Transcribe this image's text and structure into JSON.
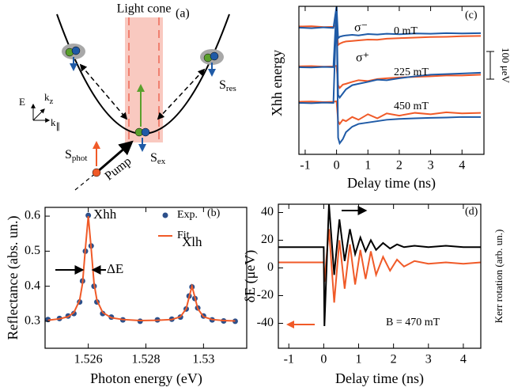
{
  "diagram": {
    "light_cone": "Light cone",
    "panel_label": "(a)",
    "axis_e": "E",
    "axis_kz": {
      "main": "k",
      "sub": "z"
    },
    "axis_kpar": {
      "main": "k",
      "sub": "∥"
    },
    "s_res": {
      "main": "S",
      "sub": "res"
    },
    "s_phot": {
      "main": "S",
      "sub": "phot"
    },
    "s_ex": {
      "main": "S",
      "sub": "ex"
    },
    "pump": "Pump"
  },
  "chart_data": [
    {
      "type": "line",
      "xlabel": "Photon energy (eV)",
      "ylabel": "Reflectance (abs. un.)",
      "annotations": [
        "Xhh",
        "(b)",
        "ΔE",
        "Xlh"
      ],
      "legend": "upper right",
      "xlim": [
        1.5245,
        1.5315
      ],
      "xticks": [
        1.526,
        1.528,
        1.53
      ],
      "ylim": [
        0.223,
        0.625
      ],
      "yticks": [
        0.3,
        0.4,
        0.5,
        0.6
      ],
      "x": [
        1.5246,
        1.525,
        1.5253,
        1.5255,
        1.5257,
        1.5258,
        1.5259,
        1.526,
        1.5261,
        1.5262,
        1.5263,
        1.5265,
        1.5268,
        1.5272,
        1.5278,
        1.5284,
        1.5289,
        1.5292,
        1.5294,
        1.5295,
        1.5296,
        1.5297,
        1.5298,
        1.53,
        1.5303,
        1.5307,
        1.5311
      ],
      "series": [
        {
          "name": "Exp.",
          "color": "#2c4f8a",
          "mode": "markers",
          "values": [
            0.305,
            0.308,
            0.315,
            0.322,
            0.355,
            0.415,
            0.5,
            0.602,
            0.515,
            0.4,
            0.355,
            0.322,
            0.312,
            0.304,
            0.3,
            0.304,
            0.306,
            0.312,
            0.335,
            0.372,
            0.398,
            0.365,
            0.338,
            0.315,
            0.304,
            0.301,
            0.3
          ]
        },
        {
          "name": "Fit.",
          "color": "#f05a28",
          "mode": "line",
          "values": [
            0.303,
            0.307,
            0.313,
            0.325,
            0.36,
            0.408,
            0.508,
            0.6,
            0.508,
            0.408,
            0.36,
            0.325,
            0.31,
            0.305,
            0.302,
            0.303,
            0.305,
            0.313,
            0.336,
            0.369,
            0.4,
            0.369,
            0.336,
            0.313,
            0.305,
            0.302,
            0.301
          ]
        }
      ]
    },
    {
      "type": "line",
      "xlabel": "Delay time (ns)",
      "ylabel": "Xhh energy",
      "annotations": [
        "(c)",
        "σ⁻",
        "0 mT",
        "σ⁺",
        "225 mT",
        "450 mT"
      ],
      "scale_bar": {
        "value": 100,
        "label": "100 μeV"
      },
      "xlim": [
        -1.2,
        4.7
      ],
      "xticks": [
        -1,
        0,
        1,
        2,
        3,
        4
      ],
      "ylim": [
        0,
        535
      ],
      "x": [
        -1.2,
        -0.8,
        -0.4,
        -0.1,
        0,
        0.05,
        0.1,
        0.2,
        0.3,
        0.5,
        0.7,
        1.0,
        1.3,
        1.6,
        2.0,
        2.5,
        3.0,
        3.5,
        4.0,
        4.6
      ],
      "series": [
        {
          "color": "#f05a28",
          "values": [
            462,
            463,
            460,
            461,
            470,
            395,
            400,
            405,
            408,
            410,
            412,
            415,
            414,
            418,
            420,
            422,
            424,
            425,
            427,
            428
          ]
        },
        {
          "color": "#1f5aa6",
          "values": [
            458,
            456,
            459,
            457,
            535,
            420,
            425,
            428,
            430,
            432,
            430,
            435,
            433,
            436,
            434,
            437,
            436,
            438,
            437,
            438
          ]
        },
        {
          "color": "#f05a28",
          "values": [
            318,
            319,
            317,
            318,
            320,
            250,
            240,
            252,
            255,
            262,
            268,
            265,
            272,
            275,
            278,
            280,
            282,
            285,
            285,
            288
          ]
        },
        {
          "color": "#1f5aa6",
          "values": [
            315,
            314,
            316,
            315,
            535,
            215,
            205,
            220,
            235,
            250,
            255,
            262,
            270,
            268,
            275,
            282,
            288,
            290,
            292,
            295
          ]
        },
        {
          "color": "#f05a28",
          "values": [
            190,
            191,
            189,
            190,
            192,
            120,
            110,
            125,
            120,
            135,
            125,
            145,
            130,
            148,
            140,
            150,
            145,
            152,
            148,
            150
          ]
        },
        {
          "color": "#1f5aa6",
          "values": [
            186,
            185,
            187,
            186,
            535,
            60,
            40,
            55,
            80,
            100,
            110,
            115,
            120,
            125,
            128,
            130,
            132,
            133,
            135,
            135
          ]
        }
      ]
    },
    {
      "type": "line",
      "xlabel": "Delay time (ns)",
      "ylabel": "δE (μeV)",
      "y2label": "Kerr rotation (arb. un.)",
      "annotations": [
        "(d)",
        "B = 470 mT"
      ],
      "xlim": [
        -1.3,
        4.5
      ],
      "xticks": [
        -1,
        0,
        1,
        2,
        3,
        4
      ],
      "ylim": [
        -58,
        46
      ],
      "yticks": [
        -40,
        -20,
        0,
        20,
        40
      ],
      "y2lim": [
        -58,
        46
      ],
      "x": [
        -1.3,
        -1,
        -0.5,
        -0.1,
        0,
        0.02,
        0.15,
        0.3,
        0.45,
        0.6,
        0.75,
        0.9,
        1.05,
        1.2,
        1.35,
        1.5,
        1.7,
        1.9,
        2.1,
        2.3,
        2.6,
        3.0,
        3.5,
        4.0,
        4.5
      ],
      "series": [
        {
          "color": "#f05a28",
          "axis": "y2",
          "values": [
            4,
            4,
            4,
            4,
            4,
            -10,
            28,
            -25,
            20,
            -15,
            17,
            -12,
            13,
            -8,
            12,
            -5,
            8,
            -2,
            6,
            1,
            5,
            3,
            4,
            3,
            4
          ]
        },
        {
          "color": "#000000",
          "values": [
            15,
            15,
            15,
            15,
            15,
            -42,
            46,
            -5,
            35,
            5,
            28,
            10,
            22,
            12,
            20,
            13,
            18,
            14,
            17,
            15,
            16,
            15,
            16,
            15,
            15
          ]
        }
      ]
    }
  ]
}
